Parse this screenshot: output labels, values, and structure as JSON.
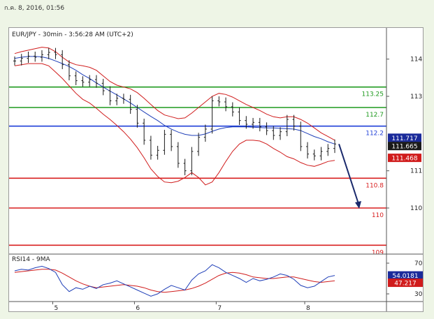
{
  "timestamp": "ก.ค. 8, 2016, 01:56",
  "chart_data": {
    "type": "line",
    "title": "EUR/JPY - 30min - 3:56:28 AM (UTC+2)",
    "xlabel": "",
    "ylabel": "",
    "x_ticks": [
      "5",
      "6",
      "7",
      "8"
    ],
    "price_panel": {
      "ylim": [
        108.8,
        114.5
      ],
      "y_ticks": [
        "114",
        "113",
        "111",
        "110"
      ],
      "current_bid": "111.665",
      "current_ask": "111.717",
      "band_low_tag": "111.468",
      "levels": [
        {
          "label": "113.25",
          "value": 113.25,
          "color": "#1f9a1f"
        },
        {
          "label": "112.7",
          "value": 112.7,
          "color": "#1f9a1f"
        },
        {
          "label": "112.2",
          "value": 112.2,
          "color": "#1f3fd8"
        },
        {
          "label": "110.8",
          "value": 110.8,
          "color": "#d81f1f"
        },
        {
          "label": "110",
          "value": 110.0,
          "color": "#d81f1f"
        },
        {
          "label": "109",
          "value": 109.0,
          "color": "#d81f1f"
        }
      ],
      "series": [
        {
          "values": [
            113.95,
            114.02,
            114.08,
            114.05,
            114.12,
            114.18,
            114.12,
            113.85,
            113.55,
            113.42,
            113.38,
            113.45,
            113.35,
            113.15,
            112.88,
            112.95,
            112.92,
            112.65,
            112.28,
            111.82,
            111.42,
            111.55,
            111.98,
            111.65,
            111.2,
            111.0,
            111.52,
            111.9,
            112.12,
            112.88,
            112.85,
            112.72,
            112.58,
            112.35,
            112.25,
            112.3,
            112.18,
            112.08,
            111.95,
            112.05,
            112.38,
            112.2,
            111.65,
            111.45,
            111.4,
            111.52,
            111.6,
            111.72
          ]
        }
      ],
      "moving_average": [
        114.02,
        114.05,
        114.07,
        114.07,
        114.06,
        114.02,
        113.95,
        113.88,
        113.8,
        113.7,
        113.58,
        113.48,
        113.36,
        113.25,
        113.14,
        113.04,
        112.93,
        112.82,
        112.7,
        112.58,
        112.46,
        112.35,
        112.22,
        112.12,
        112.04,
        111.98,
        111.95,
        111.95,
        111.99,
        112.06,
        112.12,
        112.16,
        112.18,
        112.18,
        112.18,
        112.17,
        112.16,
        112.15,
        112.15,
        112.14,
        112.13,
        112.12,
        112.08,
        112.0,
        111.92,
        111.86,
        111.78,
        111.72
      ],
      "upper_band": [
        114.15,
        114.2,
        114.24,
        114.28,
        114.32,
        114.3,
        114.2,
        114.05,
        113.92,
        113.85,
        113.82,
        113.78,
        113.7,
        113.55,
        113.4,
        113.3,
        113.25,
        113.2,
        113.1,
        112.95,
        112.78,
        112.62,
        112.5,
        112.45,
        112.4,
        112.42,
        112.55,
        112.7,
        112.85,
        113.0,
        113.08,
        113.05,
        112.98,
        112.88,
        112.78,
        112.7,
        112.62,
        112.52,
        112.45,
        112.42,
        112.45,
        112.45,
        112.38,
        112.28,
        112.15,
        112.02,
        111.92,
        111.82
      ],
      "lower_band": [
        113.82,
        113.85,
        113.88,
        113.88,
        113.88,
        113.82,
        113.65,
        113.48,
        113.28,
        113.08,
        112.92,
        112.82,
        112.68,
        112.52,
        112.38,
        112.22,
        112.05,
        111.85,
        111.62,
        111.35,
        111.05,
        110.85,
        110.7,
        110.68,
        110.72,
        110.82,
        110.95,
        110.82,
        110.62,
        110.7,
        110.95,
        111.25,
        111.52,
        111.72,
        111.82,
        111.82,
        111.8,
        111.72,
        111.6,
        111.5,
        111.38,
        111.32,
        111.22,
        111.15,
        111.12,
        111.18,
        111.25,
        111.28
      ]
    },
    "rsi_panel": {
      "title": "RSI14 - 9MA",
      "ylim": [
        20,
        80
      ],
      "y_ticks": [
        "70",
        "30"
      ],
      "rsi_value": "54.0181",
      "ma_value": "47.217",
      "rsi": [
        60,
        62,
        61,
        64,
        66,
        63,
        58,
        42,
        33,
        38,
        36,
        40,
        37,
        42,
        44,
        47,
        43,
        39,
        35,
        31,
        27,
        30,
        36,
        41,
        38,
        35,
        48,
        56,
        60,
        68,
        64,
        58,
        54,
        50,
        45,
        50,
        47,
        49,
        52,
        56,
        54,
        49,
        41,
        38,
        40,
        46,
        52,
        54
      ],
      "rsi_ma": [
        58,
        59,
        60,
        61,
        62,
        62,
        61,
        57,
        52,
        47,
        43,
        40,
        38,
        39,
        40,
        41,
        42,
        41,
        40,
        38,
        35,
        33,
        32,
        33,
        34,
        35,
        37,
        40,
        44,
        49,
        54,
        57,
        58,
        57,
        55,
        52,
        51,
        50,
        50,
        51,
        52,
        52,
        50,
        48,
        46,
        45,
        46,
        47
      ]
    }
  },
  "colors": {
    "candles": "#1a1a1a",
    "bollinger": "#d01c1c",
    "moving_average": "#1f3fb8",
    "rsi": "#1f3fb8",
    "rsi_ma": "#d01c1c",
    "projection_arrow": "#1a2a6c",
    "ask_tag": "#1a2a9a",
    "bid_tag": "#1a1a1a",
    "low_tag": "#d01c1c"
  }
}
